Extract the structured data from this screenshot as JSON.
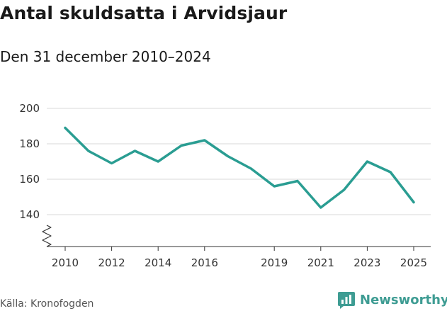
{
  "title": "Antal skuldsatta i Arvidsjaur",
  "subtitle": "Den 31 december 2010–2024",
  "source": "Källa: Kronofogden",
  "brand": {
    "name": "Newsworthy",
    "icon": "bar-chart-speech-bubble-icon",
    "color": "#3e9c93"
  },
  "chart_data": {
    "type": "line",
    "x": [
      2010,
      2011,
      2012,
      2013,
      2014,
      2015,
      2016,
      2017,
      2018,
      2019,
      2020,
      2021,
      2022,
      2023,
      2024,
      2025
    ],
    "series": [
      {
        "values": [
          189,
          176,
          169,
          176,
          170,
          179,
          182,
          173,
          166,
          156,
          159,
          144,
          154,
          170,
          164,
          147
        ],
        "color": "#2a9d92"
      }
    ],
    "x_ticks": [
      2010,
      2012,
      2014,
      2016,
      2019,
      2021,
      2023,
      2025
    ],
    "y_ticks": [
      140,
      160,
      180,
      200
    ],
    "ylim": [
      125,
      200
    ],
    "xlim": [
      2010,
      2025
    ],
    "grid": true,
    "axis_break": true,
    "xlabel": "",
    "ylabel": ""
  }
}
